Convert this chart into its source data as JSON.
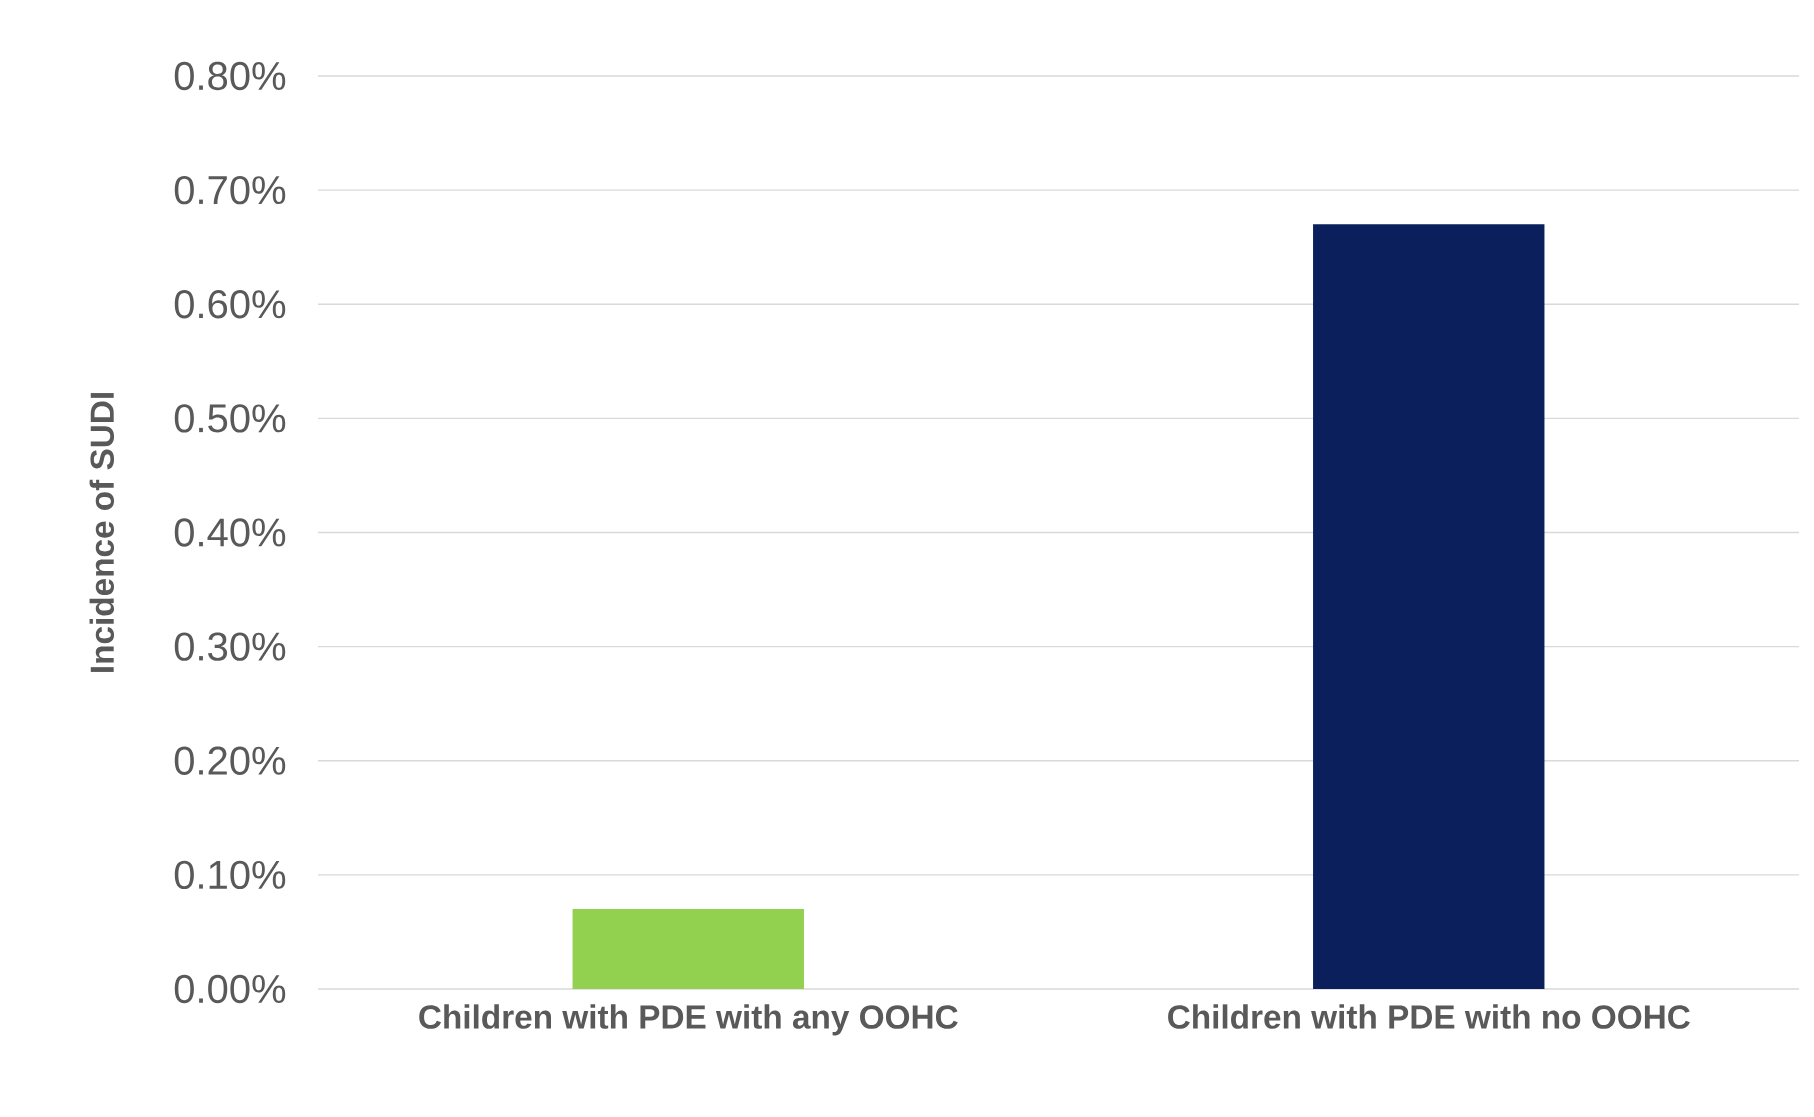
{
  "chart_data": {
    "type": "bar",
    "ylabel": "Incidence of SUDI",
    "categories": [
      "Children with PDE with any OOHC",
      "Children with PDE with no OOHC"
    ],
    "values": [
      0.07,
      0.67
    ],
    "colors": [
      "#92d050",
      "#0a1f5c"
    ],
    "ylim": [
      0,
      0.8
    ],
    "yticks": [
      {
        "value": 0,
        "label": "0.00%"
      },
      {
        "value": 0.1,
        "label": "0.10%"
      },
      {
        "value": 0.2,
        "label": "0.20%"
      },
      {
        "value": 0.3,
        "label": "0.30%"
      },
      {
        "value": 0.4,
        "label": "0.40%"
      },
      {
        "value": 0.5,
        "label": "0.50%"
      },
      {
        "value": 0.6,
        "label": "0.60%"
      },
      {
        "value": 0.7,
        "label": "0.70%"
      },
      {
        "value": 0.8,
        "label": "0.80%"
      }
    ],
    "grid": "y"
  }
}
